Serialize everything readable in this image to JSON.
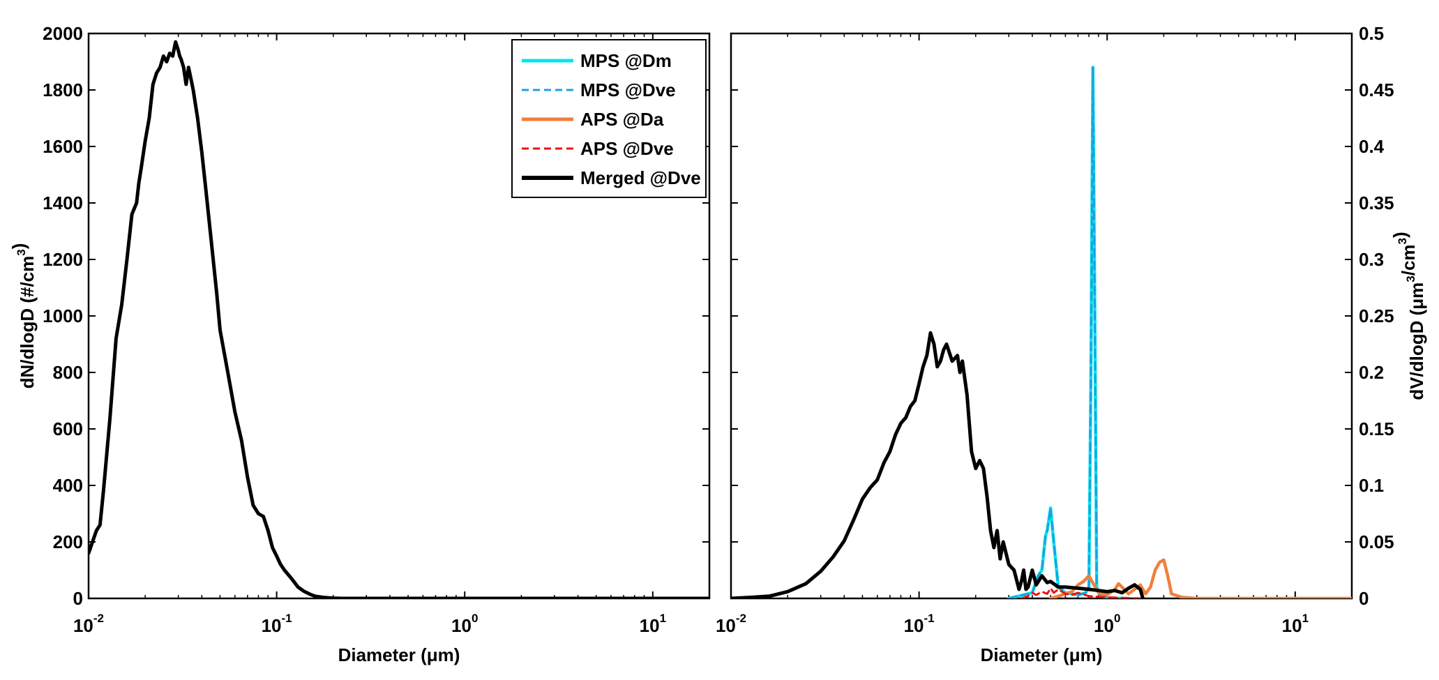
{
  "chart_data": [
    {
      "type": "line",
      "panel": "left",
      "xscale": "log",
      "xlabel": "Diameter (μm)",
      "ylabel": "dN/dlogD (#/cm3)",
      "xlim": [
        0.01,
        20
      ],
      "ylim": [
        0,
        2000
      ],
      "xticks": [
        {
          "value": 0.01,
          "base": "10",
          "exp": "-2"
        },
        {
          "value": 0.1,
          "base": "10",
          "exp": "-1"
        },
        {
          "value": 1,
          "base": "10",
          "exp": "0"
        },
        {
          "value": 10,
          "base": "10",
          "exp": "1"
        }
      ],
      "yticks": [
        "0",
        "200",
        "400",
        "600",
        "800",
        "1000",
        "1200",
        "1400",
        "1600",
        "1800",
        "2000"
      ],
      "grid": false,
      "series": [
        {
          "name": "Merged @Dve",
          "color": "#000000",
          "style": "solid",
          "x": [
            0.01,
            0.011,
            0.0115,
            0.012,
            0.013,
            0.014,
            0.015,
            0.016,
            0.017,
            0.018,
            0.0185,
            0.019,
            0.02,
            0.021,
            0.022,
            0.023,
            0.024,
            0.025,
            0.026,
            0.027,
            0.028,
            0.029,
            0.03,
            0.0305,
            0.031,
            0.032,
            0.033,
            0.034,
            0.035,
            0.036,
            0.038,
            0.04,
            0.042,
            0.045,
            0.048,
            0.05,
            0.055,
            0.06,
            0.065,
            0.07,
            0.075,
            0.08,
            0.085,
            0.09,
            0.095,
            0.1,
            0.105,
            0.11,
            0.12,
            0.13,
            0.14,
            0.15,
            0.16,
            0.18,
            0.2,
            0.22,
            0.25,
            0.3,
            0.5,
            1,
            5,
            20
          ],
          "y": [
            160,
            240,
            260,
            380,
            640,
            920,
            1040,
            1200,
            1360,
            1400,
            1470,
            1520,
            1620,
            1700,
            1820,
            1860,
            1880,
            1920,
            1900,
            1930,
            1920,
            1970,
            1940,
            1920,
            1910,
            1880,
            1820,
            1880,
            1840,
            1800,
            1700,
            1580,
            1450,
            1260,
            1080,
            950,
            800,
            660,
            560,
            430,
            330,
            300,
            290,
            240,
            180,
            150,
            120,
            100,
            70,
            40,
            25,
            15,
            8,
            3,
            1,
            0,
            0,
            0,
            0,
            0,
            0,
            0
          ]
        }
      ]
    },
    {
      "type": "line",
      "panel": "right",
      "xscale": "log",
      "xlabel": "Diameter (μm)",
      "ylabel": "dV/dlogD (μm3/cm3)",
      "xlim": [
        0.01,
        20
      ],
      "ylim": [
        0,
        0.5
      ],
      "xticks": [
        {
          "value": 0.01,
          "base": "10",
          "exp": "-2"
        },
        {
          "value": 0.1,
          "base": "10",
          "exp": "-1"
        },
        {
          "value": 1,
          "base": "10",
          "exp": "0"
        },
        {
          "value": 10,
          "base": "10",
          "exp": "1"
        }
      ],
      "yticks": [
        "0",
        "0.05",
        "0.1",
        "0.15",
        "0.2",
        "0.25",
        "0.3",
        "0.35",
        "0.4",
        "0.45",
        "0.5"
      ],
      "grid": false,
      "legend": {
        "position": "top-right",
        "entries": [
          "MPS @Dm",
          "MPS @Dve",
          "APS @Da",
          "APS @Dve",
          "Merged @Dve"
        ]
      },
      "series": [
        {
          "name": "MPS @Dm",
          "color": "#00e5ee",
          "style": "solid",
          "x": [
            0.3,
            0.4,
            0.43,
            0.45,
            0.47,
            0.48,
            0.5,
            0.52,
            0.55,
            0.6,
            0.7,
            0.77,
            0.8,
            0.82,
            0.84,
            0.86,
            0.88,
            0.9,
            0.93,
            1.0,
            1.2
          ],
          "y": [
            0,
            0.005,
            0.02,
            0.025,
            0.055,
            0.06,
            0.08,
            0.05,
            0.01,
            0.005,
            0.003,
            0.005,
            0.01,
            0.2,
            0.47,
            0.25,
            0.01,
            0.005,
            0.003,
            0,
            0
          ]
        },
        {
          "name": "MPS @Dve",
          "color": "#1ea0e0",
          "style": "dashed",
          "x": [
            0.3,
            0.4,
            0.43,
            0.45,
            0.47,
            0.48,
            0.5,
            0.52,
            0.55,
            0.6,
            0.7,
            0.77,
            0.8,
            0.82,
            0.84,
            0.86,
            0.88,
            0.9,
            0.93,
            1.0,
            1.2
          ],
          "y": [
            0,
            0.005,
            0.02,
            0.025,
            0.055,
            0.06,
            0.08,
            0.05,
            0.01,
            0.005,
            0.003,
            0.005,
            0.01,
            0.2,
            0.47,
            0.25,
            0.01,
            0.005,
            0.003,
            0,
            0
          ]
        },
        {
          "name": "APS @Da",
          "color": "#f07f3a",
          "style": "solid",
          "x": [
            0.5,
            0.55,
            0.6,
            0.65,
            0.7,
            0.75,
            0.8,
            0.9,
            1.0,
            1.1,
            1.15,
            1.2,
            1.3,
            1.4,
            1.5,
            1.6,
            1.7,
            1.8,
            1.9,
            2.0,
            2.1,
            2.2,
            2.5,
            3,
            20
          ],
          "y": [
            0,
            0.002,
            0.004,
            0.006,
            0.012,
            0.015,
            0.02,
            0.005,
            0.003,
            0.008,
            0.013,
            0.01,
            0.004,
            0.008,
            0.012,
            0.004,
            0.01,
            0.025,
            0.032,
            0.034,
            0.02,
            0.004,
            0.001,
            0,
            0
          ]
        },
        {
          "name": "APS @Dve",
          "color": "#ee1111",
          "style": "dashed",
          "x": [
            0.35,
            0.38,
            0.4,
            0.42,
            0.45,
            0.48,
            0.5,
            0.52,
            0.55,
            0.6,
            0.65,
            0.7,
            0.8,
            1.0,
            1.5
          ],
          "y": [
            0,
            0.002,
            0.005,
            0.003,
            0.006,
            0.004,
            0.009,
            0.005,
            0.008,
            0.004,
            0.003,
            0.005,
            0.002,
            0.001,
            0
          ]
        },
        {
          "name": "Merged @Dve",
          "color": "#000000",
          "style": "solid",
          "x": [
            0.01,
            0.013,
            0.016,
            0.02,
            0.025,
            0.03,
            0.035,
            0.04,
            0.045,
            0.05,
            0.055,
            0.06,
            0.065,
            0.07,
            0.075,
            0.08,
            0.085,
            0.09,
            0.095,
            0.1,
            0.105,
            0.11,
            0.115,
            0.12,
            0.125,
            0.13,
            0.135,
            0.14,
            0.15,
            0.16,
            0.165,
            0.17,
            0.18,
            0.19,
            0.2,
            0.21,
            0.22,
            0.23,
            0.24,
            0.25,
            0.26,
            0.27,
            0.28,
            0.3,
            0.32,
            0.34,
            0.35,
            0.36,
            0.37,
            0.38,
            0.4,
            0.42,
            0.45,
            0.48,
            0.5,
            0.55,
            0.6,
            0.7,
            0.8,
            0.9,
            1.0,
            1.1,
            1.2,
            1.3,
            1.4,
            1.5,
            1.55
          ],
          "y": [
            0,
            0.001,
            0.002,
            0.006,
            0.013,
            0.024,
            0.037,
            0.051,
            0.07,
            0.088,
            0.098,
            0.105,
            0.12,
            0.13,
            0.145,
            0.155,
            0.16,
            0.17,
            0.175,
            0.19,
            0.205,
            0.215,
            0.235,
            0.225,
            0.205,
            0.21,
            0.22,
            0.225,
            0.21,
            0.215,
            0.2,
            0.21,
            0.18,
            0.13,
            0.115,
            0.122,
            0.115,
            0.09,
            0.06,
            0.045,
            0.06,
            0.035,
            0.05,
            0.03,
            0.025,
            0.008,
            0.015,
            0.025,
            0.008,
            0.01,
            0.025,
            0.012,
            0.02,
            0.014,
            0.015,
            0.01,
            0.01,
            0.009,
            0.008,
            0.007,
            0.006,
            0.007,
            0.005,
            0.009,
            0.012,
            0.008,
            0
          ]
        }
      ]
    }
  ]
}
